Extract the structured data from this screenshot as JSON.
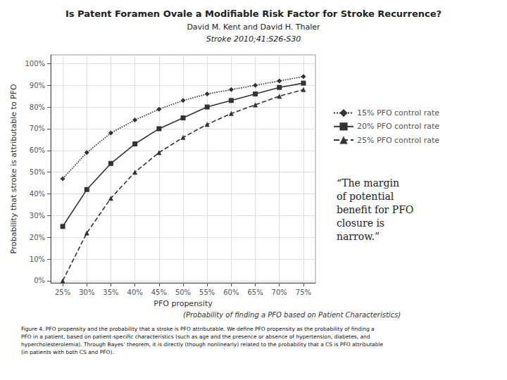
{
  "chart_data": {
    "type": "line",
    "title": "Is Patent Foramen Ovale a Modifiable Risk Factor for Stroke Recurrence?",
    "subtitle": [
      "David M. Kent and David H. Thaler",
      "Stroke 2010;41:S26-S30"
    ],
    "xlabel": "PFO propensity",
    "xlabel2": "(Probability of finding a PFO based on Patient Characteristics)",
    "ylabel": "Probability that stroke is attributable to PFO",
    "x": [
      0.25,
      0.3,
      0.35,
      0.4,
      0.45,
      0.5,
      0.55,
      0.6,
      0.65,
      0.7,
      0.75
    ],
    "xlim": [
      0.225,
      0.775
    ],
    "xticks": [
      {
        "value": 0.25,
        "label": "25%"
      },
      {
        "value": 0.3,
        "label": "30%"
      },
      {
        "value": 0.35,
        "label": "35%"
      },
      {
        "value": 0.4,
        "label": "40%"
      },
      {
        "value": 0.45,
        "label": "45%"
      },
      {
        "value": 0.5,
        "label": "50%"
      },
      {
        "value": 0.55,
        "label": "55%"
      },
      {
        "value": 0.6,
        "label": "60%"
      },
      {
        "value": 0.65,
        "label": "65%"
      },
      {
        "value": 0.7,
        "label": "70%"
      },
      {
        "value": 0.75,
        "label": "75%"
      }
    ],
    "ylim": [
      -0.01,
      1.04
    ],
    "yticks": [
      {
        "value": 0.0,
        "label": "0%"
      },
      {
        "value": 0.1,
        "label": "10%"
      },
      {
        "value": 0.2,
        "label": "20%"
      },
      {
        "value": 0.3,
        "label": "30%"
      },
      {
        "value": 0.4,
        "label": "40%"
      },
      {
        "value": 0.5,
        "label": "50%"
      },
      {
        "value": 0.6,
        "label": "60%"
      },
      {
        "value": 0.7,
        "label": "70%"
      },
      {
        "value": 0.8,
        "label": "80%"
      },
      {
        "value": 0.9,
        "label": "90%"
      },
      {
        "value": 1.0,
        "label": "100%"
      }
    ],
    "series": [
      {
        "name": "15% PFO control rate",
        "color": "#333333",
        "marker": "diamond",
        "line_style": "dotted",
        "values": [
          0.47,
          0.59,
          0.68,
          0.74,
          0.79,
          0.83,
          0.86,
          0.88,
          0.9,
          0.92,
          0.94
        ]
      },
      {
        "name": "20% PFO control rate",
        "color": "#333333",
        "marker": "square",
        "line_style": "solid",
        "values": [
          0.25,
          0.42,
          0.54,
          0.63,
          0.7,
          0.75,
          0.8,
          0.83,
          0.86,
          0.89,
          0.91
        ]
      },
      {
        "name": "25% PFO control rate",
        "color": "#333333",
        "marker": "triangle",
        "line_style": "dashed",
        "values": [
          0.0,
          0.22,
          0.38,
          0.5,
          0.59,
          0.66,
          0.72,
          0.77,
          0.81,
          0.85,
          0.88
        ]
      }
    ],
    "quote": "“The margin\nof potential\nbenefit for PFO\nclosure is\nnarrow.”",
    "caption": "Figure 4. PFO propensity and the probability that a stroke is PFO attributable. We define PFO propensity as the probability of finding a\nPFO in a patient, based on patient-specific characteristics (such as age and the presence or absence of hypertension, diabetes, and\nhypercholesterolemia). Through Bayes’ theorem, it is directly (though nonlinearly) related to the probability that a CS is PFO attributable\n(in patients with both CS and PFO).",
    "grid": true,
    "legend": "right"
  }
}
